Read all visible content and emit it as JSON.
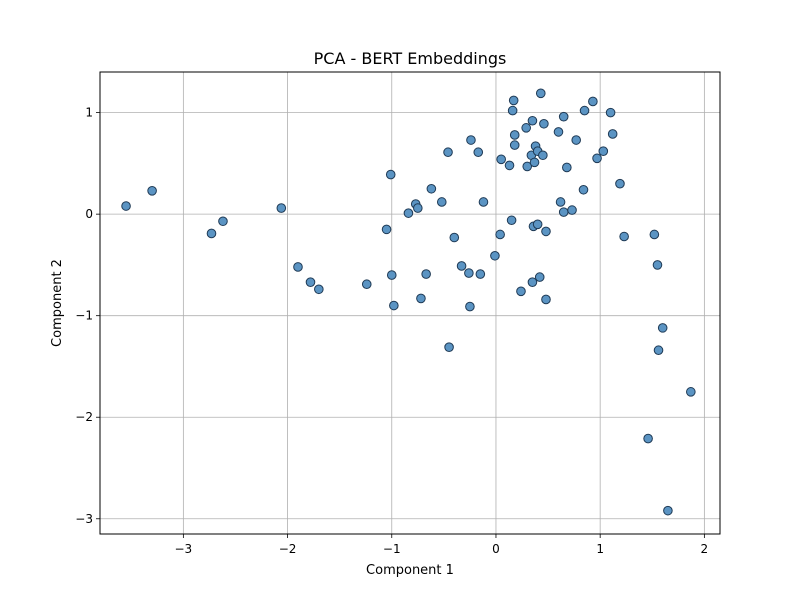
{
  "chart_data": {
    "type": "scatter",
    "title": "PCA - BERT Embeddings",
    "xlabel": "Component 1",
    "ylabel": "Component 2",
    "xlim": [
      -3.8,
      2.15
    ],
    "ylim": [
      -3.15,
      1.4
    ],
    "xticks": [
      -3,
      -2,
      -1,
      0,
      1,
      2
    ],
    "yticks": [
      -3,
      -2,
      -1,
      0,
      1
    ],
    "xtick_labels": [
      "−3",
      "−2",
      "−1",
      "0",
      "1",
      "2"
    ],
    "ytick_labels": [
      "−3",
      "−2",
      "−1",
      "0",
      "1"
    ],
    "grid": true,
    "marker_color": "#5b94c3",
    "marker_edge_color": "#1f3a55",
    "points": [
      [
        -3.55,
        0.08
      ],
      [
        -3.3,
        0.23
      ],
      [
        -2.73,
        -0.19
      ],
      [
        -2.62,
        -0.07
      ],
      [
        -2.06,
        0.06
      ],
      [
        -1.9,
        -0.52
      ],
      [
        -1.78,
        -0.67
      ],
      [
        -1.7,
        -0.74
      ],
      [
        -1.24,
        -0.69
      ],
      [
        -1.05,
        -0.15
      ],
      [
        -1.01,
        0.39
      ],
      [
        -1.0,
        -0.6
      ],
      [
        -0.98,
        -0.9
      ],
      [
        -0.84,
        0.01
      ],
      [
        -0.77,
        0.1
      ],
      [
        -0.75,
        0.06
      ],
      [
        -0.72,
        -0.83
      ],
      [
        -0.67,
        -0.59
      ],
      [
        -0.62,
        0.25
      ],
      [
        -0.52,
        0.12
      ],
      [
        -0.46,
        0.61
      ],
      [
        -0.45,
        -1.31
      ],
      [
        -0.4,
        -0.23
      ],
      [
        -0.33,
        -0.51
      ],
      [
        -0.26,
        -0.58
      ],
      [
        -0.25,
        -0.91
      ],
      [
        -0.24,
        0.73
      ],
      [
        -0.17,
        0.61
      ],
      [
        -0.15,
        -0.59
      ],
      [
        -0.12,
        0.12
      ],
      [
        -0.01,
        -0.41
      ],
      [
        0.04,
        -0.2
      ],
      [
        0.05,
        0.54
      ],
      [
        0.13,
        0.48
      ],
      [
        0.15,
        -0.06
      ],
      [
        0.16,
        1.02
      ],
      [
        0.17,
        1.12
      ],
      [
        0.18,
        0.68
      ],
      [
        0.18,
        0.78
      ],
      [
        0.24,
        -0.76
      ],
      [
        0.29,
        0.85
      ],
      [
        0.3,
        0.47
      ],
      [
        0.34,
        0.58
      ],
      [
        0.35,
        0.92
      ],
      [
        0.35,
        -0.67
      ],
      [
        0.36,
        -0.12
      ],
      [
        0.37,
        0.51
      ],
      [
        0.38,
        0.67
      ],
      [
        0.4,
        0.62
      ],
      [
        0.4,
        -0.1
      ],
      [
        0.42,
        -0.62
      ],
      [
        0.43,
        1.19
      ],
      [
        0.45,
        0.58
      ],
      [
        0.46,
        0.89
      ],
      [
        0.48,
        -0.17
      ],
      [
        0.48,
        -0.84
      ],
      [
        0.6,
        0.81
      ],
      [
        0.62,
        0.12
      ],
      [
        0.65,
        0.96
      ],
      [
        0.65,
        0.02
      ],
      [
        0.68,
        0.46
      ],
      [
        0.73,
        0.04
      ],
      [
        0.77,
        0.73
      ],
      [
        0.84,
        0.24
      ],
      [
        0.85,
        1.02
      ],
      [
        0.93,
        1.11
      ],
      [
        0.97,
        0.55
      ],
      [
        1.03,
        0.62
      ],
      [
        1.1,
        1.0
      ],
      [
        1.12,
        0.79
      ],
      [
        1.19,
        0.3
      ],
      [
        1.23,
        -0.22
      ],
      [
        1.46,
        -2.21
      ],
      [
        1.52,
        -0.2
      ],
      [
        1.55,
        -0.5
      ],
      [
        1.56,
        -1.34
      ],
      [
        1.6,
        -1.12
      ],
      [
        1.65,
        -2.92
      ],
      [
        1.87,
        -1.75
      ]
    ]
  }
}
